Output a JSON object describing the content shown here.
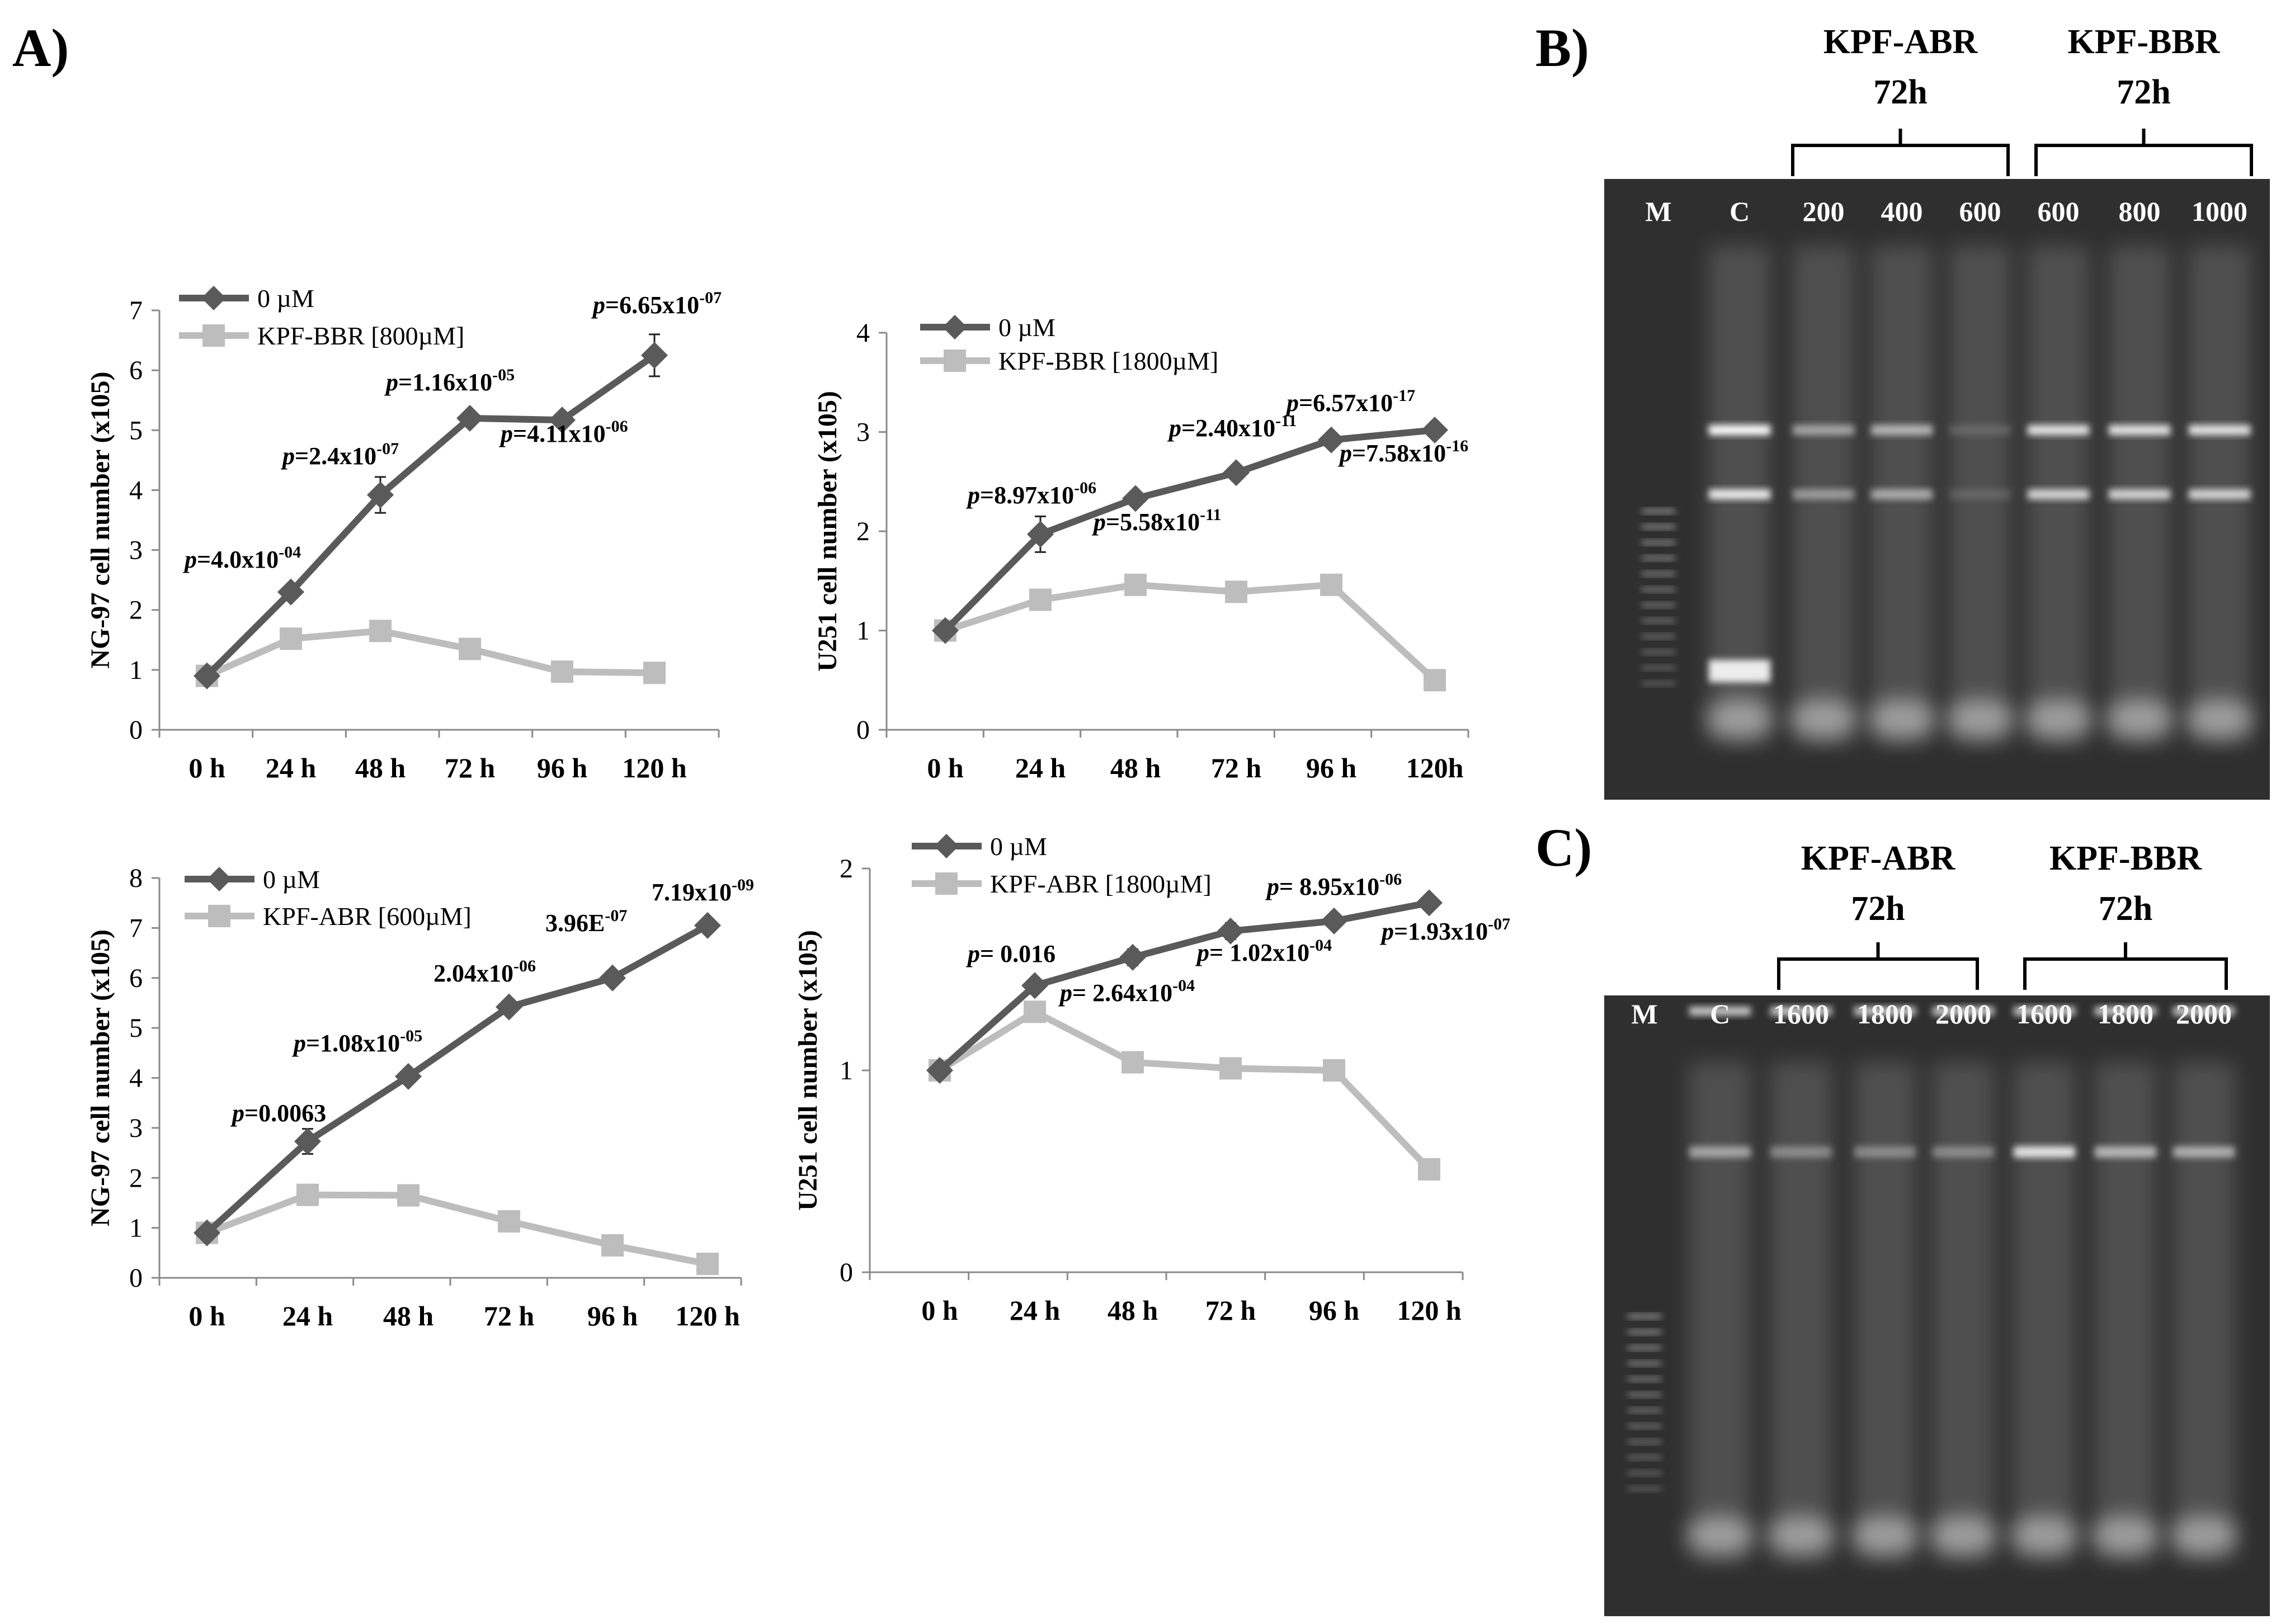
{
  "panels": {
    "a": "A)",
    "b": "B)",
    "c": "C)"
  },
  "chart_data": [
    {
      "type": "line",
      "ylabel": "NG-97 cell number (x105)",
      "categories": [
        "0 h",
        "24 h",
        "48 h",
        "72 h",
        "96 h",
        "120 h"
      ],
      "ylim": [
        0,
        7
      ],
      "yticks": [
        "0",
        "1",
        "2",
        "3",
        "4",
        "5",
        "6",
        "7"
      ],
      "series": [
        {
          "name": "0 µM",
          "values": [
            0.9,
            2.3,
            3.92,
            5.2,
            5.17,
            6.25
          ],
          "errors": [
            0.05,
            0.08,
            0.3,
            0.12,
            0.05,
            0.35
          ]
        },
        {
          "name": "KPF-BBR [800µM]",
          "values": [
            0.9,
            1.52,
            1.65,
            1.35,
            0.97,
            0.95
          ],
          "errors": [
            0.03,
            0.05,
            0.05,
            0.05,
            0.04,
            0.04
          ]
        }
      ],
      "annotations": [
        {
          "p": "p",
          "text": "=4.0x10",
          "sup": "-04"
        },
        {
          "p": "p",
          "text": "=2.4x10",
          "sup": "-07"
        },
        {
          "p": "p",
          "text": "=1.16x10",
          "sup": "-05"
        },
        {
          "p": "p",
          "text": "=4.11x10",
          "sup": "-06"
        },
        {
          "p": "p",
          "text": "=6.65x10",
          "sup": "-07"
        }
      ]
    },
    {
      "type": "line",
      "ylabel": "U251 cell number (x105)",
      "categories": [
        "0 h",
        "24 h",
        "48 h",
        "72 h",
        "96 h",
        "120h"
      ],
      "ylim": [
        0,
        4
      ],
      "yticks": [
        "0",
        "1",
        "2",
        "3",
        "4"
      ],
      "series": [
        {
          "name": "0 µM",
          "values": [
            1.0,
            1.97,
            2.33,
            2.59,
            2.92,
            3.02
          ],
          "errors": [
            0.03,
            0.18,
            0.05,
            0.05,
            0.05,
            0.04
          ]
        },
        {
          "name": "KPF-BBR [1800µM]",
          "values": [
            1.0,
            1.31,
            1.46,
            1.39,
            1.46,
            0.5
          ],
          "errors": [
            0.02,
            0.04,
            0.04,
            0.04,
            0.04,
            0.03
          ]
        }
      ],
      "annotations": [
        {
          "p": "p",
          "text": "=8.97x10",
          "sup": "-06"
        },
        {
          "p": "p",
          "text": "=5.58x10",
          "sup": "-11"
        },
        {
          "p": "p",
          "text": "=2.40x10",
          "sup": "-11"
        },
        {
          "p": "p",
          "text": "=6.57x10",
          "sup": "-17"
        },
        {
          "p": "p",
          "text": "=7.58x10",
          "sup": "-16"
        }
      ]
    },
    {
      "type": "line",
      "ylabel": "NG-97 cell number (x105)",
      "categories": [
        "0 h",
        "24 h",
        "48 h",
        "72 h",
        "96 h",
        "120 h"
      ],
      "ylim": [
        0,
        8
      ],
      "yticks": [
        "0",
        "1",
        "2",
        "3",
        "4",
        "5",
        "6",
        "7",
        "8"
      ],
      "series": [
        {
          "name": "0 µM",
          "values": [
            0.9,
            2.73,
            4.03,
            5.42,
            6.0,
            7.05
          ],
          "errors": [
            0.05,
            0.25,
            0.06,
            0.06,
            0.06,
            0.05
          ]
        },
        {
          "name": "KPF-ABR [600µM]",
          "values": [
            0.9,
            1.66,
            1.65,
            1.13,
            0.65,
            0.28
          ],
          "errors": [
            0.04,
            0.2,
            0.05,
            0.05,
            0.04,
            0.03
          ]
        }
      ],
      "annotations": [
        {
          "p": "p",
          "text": "=0.0063",
          "sup": ""
        },
        {
          "p": "p",
          "text": "=1.08x10",
          "sup": "-05"
        },
        {
          "p": "",
          "text": "2.04x10",
          "sup": "-06"
        },
        {
          "p": "",
          "text": "3.96E",
          "sup": "-07"
        },
        {
          "p": "",
          "text": "7.19x10",
          "sup": "-09"
        }
      ]
    },
    {
      "type": "line",
      "ylabel": "U251 cell number (x105)",
      "categories": [
        "0 h",
        "24 h",
        "48 h",
        "72 h",
        "96 h",
        "120 h"
      ],
      "ylim": [
        0,
        2
      ],
      "yticks": [
        "0",
        "1",
        "2"
      ],
      "series": [
        {
          "name": "0 µM",
          "values": [
            1.0,
            1.42,
            1.56,
            1.69,
            1.74,
            1.83
          ],
          "errors": [
            0.02,
            0.03,
            0.04,
            0.04,
            0.03,
            0.02
          ]
        },
        {
          "name": "KPF-ABR [1800µM]",
          "values": [
            1.0,
            1.29,
            1.04,
            1.01,
            1.0,
            0.51
          ],
          "errors": [
            0.02,
            0.02,
            0.03,
            0.05,
            0.02,
            0.02
          ]
        }
      ],
      "annotations": [
        {
          "p": "p",
          "text": "= 0.016",
          "sup": ""
        },
        {
          "p": "p",
          "text": "= 2.64x10",
          "sup": "-04"
        },
        {
          "p": "p",
          "text": "= 1.02x10",
          "sup": "-04"
        },
        {
          "p": "p",
          "text": "= 8.95x10",
          "sup": "-06"
        },
        {
          "p": "p",
          "text": "=1.93x10",
          "sup": "-07"
        }
      ]
    }
  ],
  "gels": [
    {
      "left_group": "KPF-ABR",
      "left_time": "72h",
      "right_group": "KPF-BBR",
      "right_time": "72h",
      "lanes": [
        "M",
        "C",
        "200",
        "400",
        "600",
        "600",
        "800",
        "1000"
      ]
    },
    {
      "left_group": "KPF-ABR",
      "left_time": "72h",
      "right_group": "KPF-BBR",
      "right_time": "72h",
      "lanes": [
        "M",
        "C",
        "1600",
        "1800",
        "2000",
        "1600",
        "1800",
        "2000"
      ]
    }
  ],
  "colors": {
    "dark_series": "#5a5a5a",
    "light_series": "#bdbdbd",
    "gel_bg": "#2f2f2f"
  }
}
